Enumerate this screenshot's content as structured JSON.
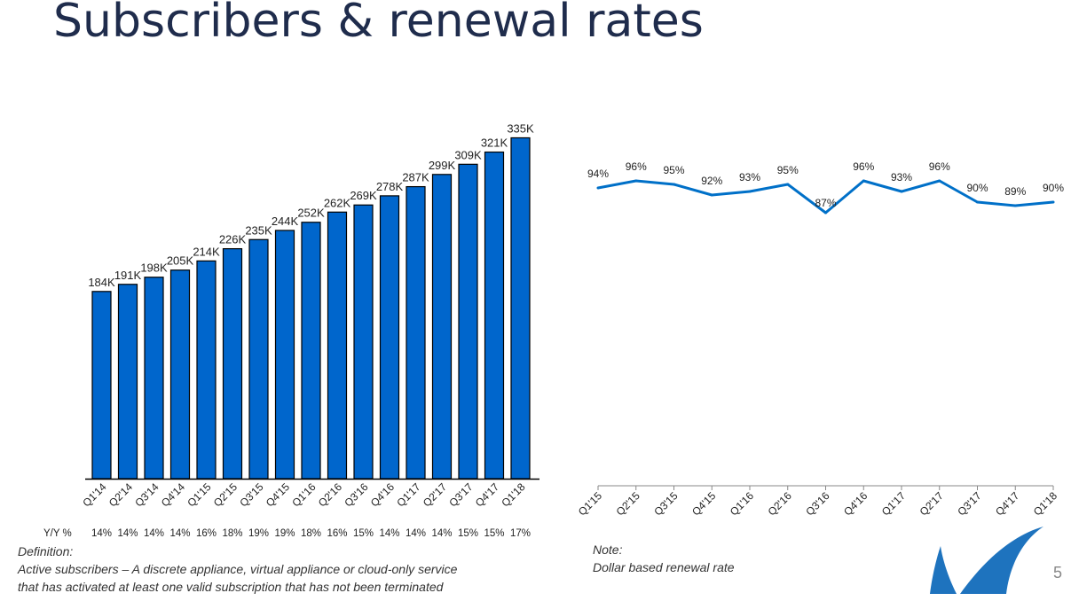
{
  "title": "Subscribers & renewal rates",
  "colors": {
    "bar": "#0066cc",
    "line": "#0070c8",
    "title": "#1f2c4c",
    "logo": "#1e73be"
  },
  "chart_data": [
    {
      "type": "bar",
      "categories": [
        "Q1'14",
        "Q2'14",
        "Q3'14",
        "Q4'14",
        "Q1'15",
        "Q2'15",
        "Q3'15",
        "Q4'15",
        "Q1'16",
        "Q2'16",
        "Q3'16",
        "Q4'16",
        "Q1'17",
        "Q2'17",
        "Q3'17",
        "Q4'17",
        "Q1'18"
      ],
      "values": [
        184,
        191,
        198,
        205,
        214,
        226,
        235,
        244,
        252,
        262,
        269,
        278,
        287,
        299,
        309,
        321,
        335
      ],
      "value_labels": [
        "184K",
        "191K",
        "198K",
        "205K",
        "214K",
        "226K",
        "235K",
        "244K",
        "252K",
        "262K",
        "269K",
        "278K",
        "287K",
        "299K",
        "309K",
        "321K",
        "335K"
      ],
      "yoy_label": "Y/Y %",
      "yoy": [
        "14%",
        "14%",
        "14%",
        "14%",
        "16%",
        "18%",
        "19%",
        "19%",
        "18%",
        "16%",
        "15%",
        "14%",
        "14%",
        "14%",
        "15%",
        "15%",
        "17%"
      ],
      "ylim": [
        0,
        345
      ]
    },
    {
      "type": "line",
      "categories": [
        "Q1'15",
        "Q2'15",
        "Q3'15",
        "Q4'15",
        "Q1'16",
        "Q2'16",
        "Q3'16",
        "Q4'16",
        "Q1'17",
        "Q2'17",
        "Q3'17",
        "Q4'17",
        "Q1'18"
      ],
      "values": [
        94,
        96,
        95,
        92,
        93,
        95,
        87,
        96,
        93,
        96,
        90,
        89,
        90
      ],
      "value_labels": [
        "94%",
        "96%",
        "95%",
        "92%",
        "93%",
        "95%",
        "87%",
        "96%",
        "93%",
        "96%",
        "90%",
        "89%",
        "90%"
      ],
      "ylim": [
        0,
        100
      ]
    }
  ],
  "definition": {
    "heading": "Definition:",
    "line1": "Active subscribers – A discrete appliance, virtual appliance or cloud-only service",
    "line2": "that has activated at least one valid subscription that has not been terminated"
  },
  "note": {
    "heading": "Note:",
    "text": "Dollar based renewal rate"
  },
  "page_number": "5"
}
